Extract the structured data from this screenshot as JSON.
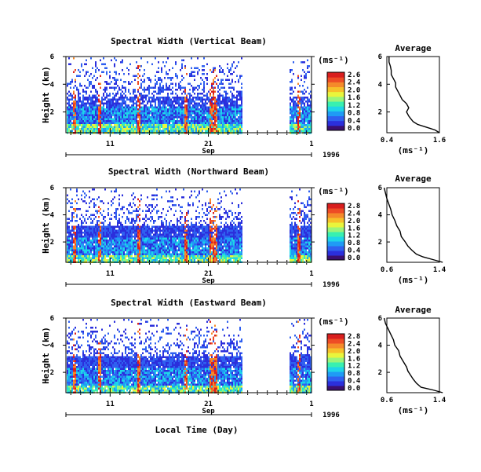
{
  "figure": {
    "xlabel": "Local Time (Day)",
    "colorbar_colors": [
      "#3b0f70",
      "#2b2fdc",
      "#2f60f0",
      "#1f9bf5",
      "#1ed5e8",
      "#38f0b0",
      "#9af57a",
      "#e9f53c",
      "#f7c02a",
      "#f58a2a",
      "#ee4c25",
      "#d91e1e"
    ]
  },
  "chart_data": [
    {
      "type": "heatmap",
      "title": "Spectral Width (Vertical Beam)",
      "ylabel": "Height (km)",
      "ylim": [
        0.5,
        6
      ],
      "yticks": [
        "2",
        "4",
        "6"
      ],
      "x_ticks": [
        "11",
        "21",
        "1"
      ],
      "month_label": "Sep",
      "year_label": "1996",
      "colorbar_label": "(ms⁻¹)",
      "colorbar_ticks": [
        "2.6",
        "2.4",
        "2.0",
        "1.6",
        "1.2",
        "0.8",
        "0.4",
        "0.0"
      ],
      "average": {
        "title": "Average",
        "xlabel": "(ms⁻¹)",
        "xticks": [
          "0.4",
          "1.6"
        ],
        "xlim": [
          0.4,
          1.6
        ],
        "yticks": [
          "2",
          "4",
          "6"
        ],
        "profile": [
          [
            1.6,
            0.5
          ],
          [
            1.5,
            0.7
          ],
          [
            1.3,
            0.9
          ],
          [
            1.1,
            1.1
          ],
          [
            1.0,
            1.3
          ],
          [
            0.95,
            1.5
          ],
          [
            0.9,
            1.7
          ],
          [
            0.85,
            2.0
          ],
          [
            0.9,
            2.3
          ],
          [
            0.85,
            2.6
          ],
          [
            0.75,
            2.9
          ],
          [
            0.7,
            3.2
          ],
          [
            0.65,
            3.5
          ],
          [
            0.6,
            3.8
          ],
          [
            0.6,
            4.1
          ],
          [
            0.55,
            4.4
          ],
          [
            0.5,
            4.7
          ],
          [
            0.5,
            5.0
          ],
          [
            0.48,
            5.3
          ],
          [
            0.45,
            5.6
          ],
          [
            0.45,
            6.0
          ]
        ]
      }
    },
    {
      "type": "heatmap",
      "title": "Spectral Width (Northward Beam)",
      "ylabel": "Height (km)",
      "ylim": [
        0.5,
        6
      ],
      "yticks": [
        "2",
        "4",
        "6"
      ],
      "x_ticks": [
        "11",
        "21",
        "1"
      ],
      "month_label": "Sep",
      "year_label": "1996",
      "colorbar_label": "(ms⁻¹)",
      "colorbar_ticks": [
        "2.8",
        "2.4",
        "2.0",
        "1.6",
        "1.2",
        "0.8",
        "0.4",
        "0.0"
      ],
      "average": {
        "title": "Average",
        "xlabel": "(ms⁻¹)",
        "xticks": [
          "0.6",
          "1.4"
        ],
        "xlim": [
          0.6,
          1.4
        ],
        "yticks": [
          "2",
          "4",
          "6"
        ],
        "profile": [
          [
            1.45,
            0.5
          ],
          [
            1.3,
            0.7
          ],
          [
            1.15,
            0.9
          ],
          [
            1.05,
            1.1
          ],
          [
            0.98,
            1.4
          ],
          [
            0.92,
            1.7
          ],
          [
            0.88,
            2.0
          ],
          [
            0.82,
            2.4
          ],
          [
            0.8,
            2.8
          ],
          [
            0.75,
            3.2
          ],
          [
            0.72,
            3.6
          ],
          [
            0.68,
            4.0
          ],
          [
            0.66,
            4.4
          ],
          [
            0.63,
            4.8
          ],
          [
            0.6,
            5.2
          ],
          [
            0.58,
            5.6
          ],
          [
            0.56,
            6.0
          ]
        ]
      }
    },
    {
      "type": "heatmap",
      "title": "Spectral Width (Eastward Beam)",
      "ylabel": "Height (km)",
      "ylim": [
        0.5,
        6
      ],
      "yticks": [
        "2",
        "4",
        "6"
      ],
      "x_ticks": [
        "11",
        "21",
        "1"
      ],
      "month_label": "Sep",
      "year_label": "1996",
      "colorbar_label": "(ms⁻¹)",
      "colorbar_ticks": [
        "2.8",
        "2.4",
        "2.0",
        "1.6",
        "1.2",
        "0.8",
        "0.4",
        "0.0"
      ],
      "average": {
        "title": "Average",
        "xlabel": "(ms⁻¹)",
        "xticks": [
          "0.6",
          "1.4"
        ],
        "xlim": [
          0.6,
          1.4
        ],
        "yticks": [
          "2",
          "4",
          "6"
        ],
        "profile": [
          [
            1.45,
            0.5
          ],
          [
            1.3,
            0.7
          ],
          [
            1.12,
            0.9
          ],
          [
            1.05,
            1.2
          ],
          [
            1.0,
            1.5
          ],
          [
            0.96,
            1.8
          ],
          [
            0.92,
            2.1
          ],
          [
            0.9,
            2.4
          ],
          [
            0.85,
            2.8
          ],
          [
            0.8,
            3.2
          ],
          [
            0.78,
            3.6
          ],
          [
            0.72,
            4.0
          ],
          [
            0.7,
            4.4
          ],
          [
            0.66,
            4.8
          ],
          [
            0.62,
            5.2
          ],
          [
            0.58,
            5.6
          ],
          [
            0.56,
            6.0
          ]
        ]
      }
    }
  ]
}
